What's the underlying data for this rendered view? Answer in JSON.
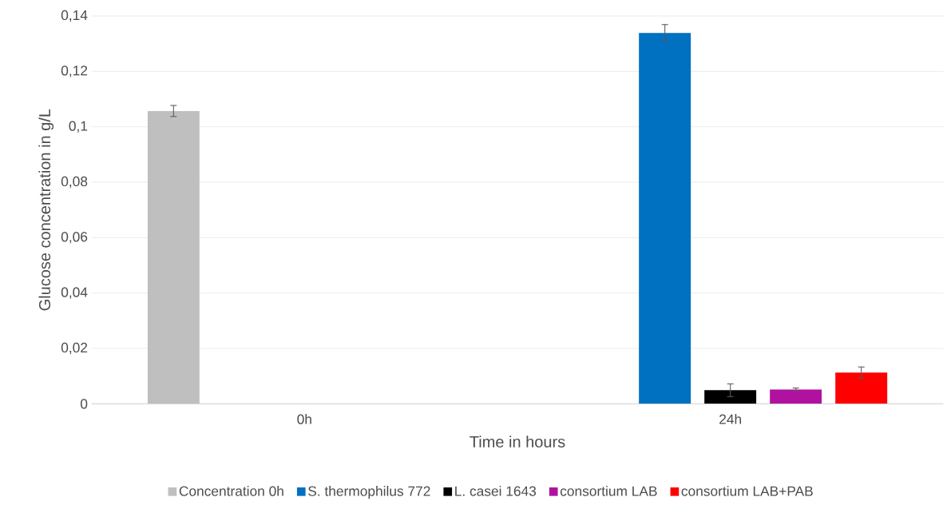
{
  "chart_data": {
    "type": "bar",
    "xlabel": "Time in hours",
    "ylabel": "Glucose concentration in g/L",
    "categories": [
      "0h",
      "24h"
    ],
    "series": [
      {
        "name": "Concentration 0h",
        "color": "#bfbfbf",
        "values": [
          0.1057,
          null
        ],
        "errors": [
          0.002,
          null
        ]
      },
      {
        "name": "S. thermophilus 772",
        "color": "#0070c0",
        "values": [
          null,
          0.1339
        ],
        "errors": [
          null,
          0.003
        ]
      },
      {
        "name": "L. casei 1643",
        "color": "#000000",
        "values": [
          null,
          0.0049
        ],
        "errors": [
          null,
          0.0023
        ]
      },
      {
        "name": "consortium LAB",
        "color": "#b0129f",
        "values": [
          null,
          0.0052
        ],
        "errors": [
          null,
          0.0005
        ]
      },
      {
        "name": "consortium LAB+PAB",
        "color": "#ff0000",
        "values": [
          null,
          0.0113
        ],
        "errors": [
          null,
          0.002
        ]
      }
    ],
    "ylim": [
      0,
      0.14
    ],
    "yticks": [
      {
        "value": 0,
        "label": "0"
      },
      {
        "value": 0.02,
        "label": "0,02"
      },
      {
        "value": 0.04,
        "label": "0,04"
      },
      {
        "value": 0.06,
        "label": "0,06"
      },
      {
        "value": 0.08,
        "label": "0,08"
      },
      {
        "value": 0.1,
        "label": "0,1"
      },
      {
        "value": 0.12,
        "label": "0,12"
      },
      {
        "value": 0.14,
        "label": "0,14"
      }
    ],
    "grid": "y",
    "legend": "bottom"
  }
}
